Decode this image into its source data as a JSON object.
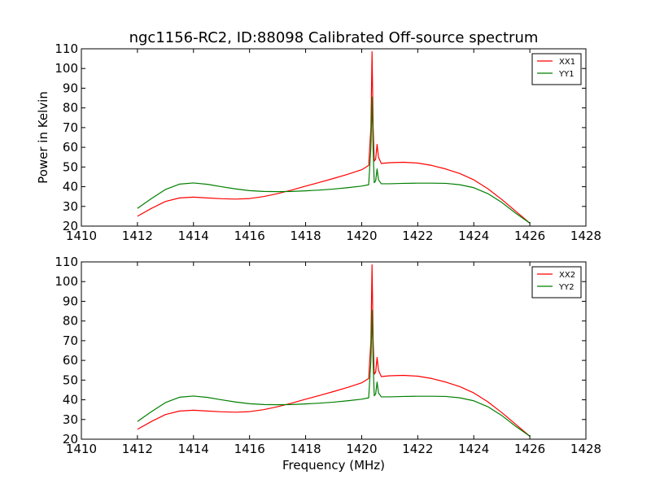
{
  "figure": {
    "title": "ngc1156-RC2, ID:88098 Calibrated Off-source spectrum"
  },
  "colors": {
    "xx": "#ff0000",
    "yy": "#007f00"
  },
  "chart_data": [
    {
      "type": "line",
      "title": "ngc1156-RC2, ID:88098 Calibrated Off-source spectrum",
      "xlabel": "",
      "ylabel": "Power in Kelvin",
      "xlim": [
        1410,
        1428
      ],
      "ylim": [
        20,
        110
      ],
      "xticks": [
        1410,
        1412,
        1414,
        1416,
        1418,
        1420,
        1422,
        1424,
        1426,
        1428
      ],
      "yticks": [
        20,
        30,
        40,
        50,
        60,
        70,
        80,
        90,
        100,
        110
      ],
      "legend_position": "top-right",
      "series": [
        {
          "name": "XX1",
          "color": "#ff0000",
          "points": [
            [
              1412.0,
              25.0
            ],
            [
              1412.5,
              29.0
            ],
            [
              1413.0,
              32.5
            ],
            [
              1413.5,
              34.3
            ],
            [
              1414.0,
              34.7
            ],
            [
              1414.5,
              34.3
            ],
            [
              1415.0,
              33.9
            ],
            [
              1415.5,
              33.7
            ],
            [
              1416.0,
              34.0
            ],
            [
              1416.5,
              35.0
            ],
            [
              1417.0,
              36.5
            ],
            [
              1417.5,
              38.3
            ],
            [
              1418.0,
              40.3
            ],
            [
              1418.5,
              42.2
            ],
            [
              1419.0,
              44.2
            ],
            [
              1419.5,
              46.3
            ],
            [
              1420.0,
              48.6
            ],
            [
              1420.25,
              50.8
            ],
            [
              1420.33,
              70.0
            ],
            [
              1420.37,
              108.5
            ],
            [
              1420.41,
              70.0
            ],
            [
              1420.45,
              53.0
            ],
            [
              1420.5,
              54.0
            ],
            [
              1420.55,
              61.5
            ],
            [
              1420.6,
              55.0
            ],
            [
              1420.7,
              51.8
            ],
            [
              1421.0,
              52.2
            ],
            [
              1421.5,
              52.4
            ],
            [
              1422.0,
              52.0
            ],
            [
              1422.5,
              50.8
            ],
            [
              1423.0,
              49.0
            ],
            [
              1423.5,
              46.7
            ],
            [
              1424.0,
              43.5
            ],
            [
              1424.5,
              39.0
            ],
            [
              1425.0,
              33.5
            ],
            [
              1425.5,
              27.5
            ],
            [
              1426.0,
              21.5
            ]
          ]
        },
        {
          "name": "YY1",
          "color": "#007f00",
          "points": [
            [
              1412.0,
              29.0
            ],
            [
              1412.5,
              34.0
            ],
            [
              1413.0,
              38.6
            ],
            [
              1413.5,
              41.3
            ],
            [
              1414.0,
              41.9
            ],
            [
              1414.5,
              41.2
            ],
            [
              1415.0,
              40.0
            ],
            [
              1415.5,
              38.9
            ],
            [
              1416.0,
              38.0
            ],
            [
              1416.5,
              37.6
            ],
            [
              1417.0,
              37.5
            ],
            [
              1417.5,
              37.6
            ],
            [
              1418.0,
              37.9
            ],
            [
              1418.5,
              38.3
            ],
            [
              1419.0,
              38.8
            ],
            [
              1419.5,
              39.5
            ],
            [
              1420.0,
              40.3
            ],
            [
              1420.25,
              41.0
            ],
            [
              1420.33,
              60.0
            ],
            [
              1420.37,
              85.5
            ],
            [
              1420.41,
              58.0
            ],
            [
              1420.45,
              42.0
            ],
            [
              1420.5,
              43.0
            ],
            [
              1420.55,
              49.0
            ],
            [
              1420.6,
              43.5
            ],
            [
              1420.7,
              41.5
            ],
            [
              1421.0,
              41.5
            ],
            [
              1421.5,
              41.7
            ],
            [
              1422.0,
              41.8
            ],
            [
              1422.5,
              41.8
            ],
            [
              1423.0,
              41.7
            ],
            [
              1423.5,
              41.0
            ],
            [
              1424.0,
              39.5
            ],
            [
              1424.5,
              36.5
            ],
            [
              1425.0,
              32.0
            ],
            [
              1425.5,
              26.5
            ],
            [
              1426.0,
              21.5
            ]
          ]
        }
      ]
    },
    {
      "type": "line",
      "title": "",
      "xlabel": "Frequency (MHz)",
      "ylabel": "",
      "xlim": [
        1410,
        1428
      ],
      "ylim": [
        20,
        110
      ],
      "xticks": [
        1410,
        1412,
        1414,
        1416,
        1418,
        1420,
        1422,
        1424,
        1426,
        1428
      ],
      "yticks": [
        20,
        30,
        40,
        50,
        60,
        70,
        80,
        90,
        100,
        110
      ],
      "legend_position": "top-right",
      "series": [
        {
          "name": "XX2",
          "color": "#ff0000",
          "points": [
            [
              1412.0,
              25.0
            ],
            [
              1412.5,
              29.0
            ],
            [
              1413.0,
              32.5
            ],
            [
              1413.5,
              34.3
            ],
            [
              1414.0,
              34.7
            ],
            [
              1414.5,
              34.3
            ],
            [
              1415.0,
              33.9
            ],
            [
              1415.5,
              33.7
            ],
            [
              1416.0,
              34.0
            ],
            [
              1416.5,
              35.0
            ],
            [
              1417.0,
              36.5
            ],
            [
              1417.5,
              38.3
            ],
            [
              1418.0,
              40.3
            ],
            [
              1418.5,
              42.2
            ],
            [
              1419.0,
              44.2
            ],
            [
              1419.5,
              46.3
            ],
            [
              1420.0,
              48.6
            ],
            [
              1420.25,
              50.8
            ],
            [
              1420.33,
              70.0
            ],
            [
              1420.37,
              108.5
            ],
            [
              1420.41,
              70.0
            ],
            [
              1420.45,
              53.0
            ],
            [
              1420.5,
              54.0
            ],
            [
              1420.55,
              61.5
            ],
            [
              1420.6,
              55.0
            ],
            [
              1420.7,
              51.8
            ],
            [
              1421.0,
              52.2
            ],
            [
              1421.5,
              52.4
            ],
            [
              1422.0,
              52.0
            ],
            [
              1422.5,
              50.8
            ],
            [
              1423.0,
              49.0
            ],
            [
              1423.5,
              46.7
            ],
            [
              1424.0,
              43.5
            ],
            [
              1424.5,
              39.0
            ],
            [
              1425.0,
              33.5
            ],
            [
              1425.5,
              27.5
            ],
            [
              1426.0,
              21.5
            ]
          ]
        },
        {
          "name": "YY2",
          "color": "#007f00",
          "points": [
            [
              1412.0,
              29.0
            ],
            [
              1412.5,
              34.0
            ],
            [
              1413.0,
              38.6
            ],
            [
              1413.5,
              41.3
            ],
            [
              1414.0,
              41.9
            ],
            [
              1414.5,
              41.2
            ],
            [
              1415.0,
              40.0
            ],
            [
              1415.5,
              38.9
            ],
            [
              1416.0,
              38.0
            ],
            [
              1416.5,
              37.6
            ],
            [
              1417.0,
              37.5
            ],
            [
              1417.5,
              37.6
            ],
            [
              1418.0,
              37.9
            ],
            [
              1418.5,
              38.3
            ],
            [
              1419.0,
              38.8
            ],
            [
              1419.5,
              39.5
            ],
            [
              1420.0,
              40.3
            ],
            [
              1420.25,
              41.0
            ],
            [
              1420.33,
              60.0
            ],
            [
              1420.37,
              85.5
            ],
            [
              1420.41,
              58.0
            ],
            [
              1420.45,
              42.0
            ],
            [
              1420.5,
              43.0
            ],
            [
              1420.55,
              49.0
            ],
            [
              1420.6,
              43.5
            ],
            [
              1420.7,
              41.5
            ],
            [
              1421.0,
              41.5
            ],
            [
              1421.5,
              41.7
            ],
            [
              1422.0,
              41.8
            ],
            [
              1422.5,
              41.8
            ],
            [
              1423.0,
              41.7
            ],
            [
              1423.5,
              41.0
            ],
            [
              1424.0,
              39.5
            ],
            [
              1424.5,
              36.5
            ],
            [
              1425.0,
              32.0
            ],
            [
              1425.5,
              26.5
            ],
            [
              1426.0,
              21.5
            ]
          ]
        }
      ]
    }
  ]
}
